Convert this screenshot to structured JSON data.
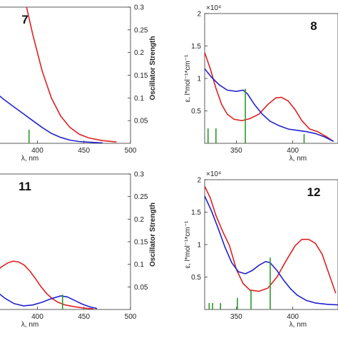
{
  "chart_data": [
    {
      "type": "line",
      "panel_label": "7",
      "xlabel": "λ, nm",
      "y2label": "Oscillator Strength",
      "xlim": [
        356,
        500
      ],
      "x_ticks": [
        "400",
        "450",
        "500"
      ],
      "ylim_right": [
        0,
        0.3
      ],
      "y2_ticks": [
        "0.3",
        "0.25",
        "0.2",
        "0.15",
        "0.1",
        "0.05"
      ],
      "series": [
        {
          "color": "#dd2222",
          "points": [
            [
              356,
              0.55
            ],
            [
              365,
              0.5
            ],
            [
              375,
              0.42
            ],
            [
              385,
              0.33
            ],
            [
              395,
              0.24
            ],
            [
              405,
              0.16
            ],
            [
              415,
              0.1
            ],
            [
              425,
              0.06
            ],
            [
              435,
              0.035
            ],
            [
              445,
              0.02
            ],
            [
              455,
              0.012
            ],
            [
              470,
              0.006
            ],
            [
              485,
              0.003
            ]
          ]
        },
        {
          "color": "#2222cc",
          "points": [
            [
              356,
              0.11
            ],
            [
              365,
              0.095
            ],
            [
              375,
              0.08
            ],
            [
              385,
              0.065
            ],
            [
              395,
              0.05
            ],
            [
              405,
              0.035
            ],
            [
              415,
              0.022
            ],
            [
              425,
              0.013
            ],
            [
              435,
              0.007
            ],
            [
              445,
              0.004
            ],
            [
              460,
              0.002
            ],
            [
              470,
              0.001
            ]
          ]
        }
      ],
      "sticks": [
        {
          "x": 391,
          "f": 0.03
        }
      ]
    },
    {
      "type": "line",
      "panel_label": "8",
      "xlabel": "λ, nm",
      "ylabel": "ε, l*mol⁻¹*cm⁻¹",
      "y_multiplier": "×10⁴",
      "xlim": [
        322,
        440
      ],
      "x_ticks": [
        "350",
        "400"
      ],
      "ylim": [
        0,
        2
      ],
      "y_ticks": [
        "2",
        "1.5",
        "1",
        "0.5"
      ],
      "series": [
        {
          "color": "#dd2222",
          "points": [
            [
              322,
              1.4
            ],
            [
              327,
              1.15
            ],
            [
              332,
              0.85
            ],
            [
              337,
              0.6
            ],
            [
              342,
              0.45
            ],
            [
              348,
              0.37
            ],
            [
              355,
              0.35
            ],
            [
              362,
              0.38
            ],
            [
              370,
              0.45
            ],
            [
              378,
              0.6
            ],
            [
              385,
              0.7
            ],
            [
              390,
              0.71
            ],
            [
              396,
              0.65
            ],
            [
              402,
              0.52
            ],
            [
              408,
              0.35
            ],
            [
              415,
              0.22
            ],
            [
              422,
              0.18
            ],
            [
              430,
              0.1
            ],
            [
              436,
              0.03
            ]
          ]
        },
        {
          "color": "#2222cc",
          "points": [
            [
              322,
              1.15
            ],
            [
              328,
              1.02
            ],
            [
              335,
              0.9
            ],
            [
              342,
              0.82
            ],
            [
              350,
              0.8
            ],
            [
              356,
              0.82
            ],
            [
              360,
              0.76
            ],
            [
              366,
              0.6
            ],
            [
              373,
              0.45
            ],
            [
              380,
              0.34
            ],
            [
              388,
              0.27
            ],
            [
              396,
              0.22
            ],
            [
              404,
              0.2
            ],
            [
              412,
              0.18
            ],
            [
              420,
              0.15
            ],
            [
              428,
              0.1
            ],
            [
              436,
              0.03
            ]
          ]
        }
      ],
      "sticks": [
        {
          "x": 325,
          "h": 0.23
        },
        {
          "x": 332,
          "h": 0.23
        },
        {
          "x": 358,
          "h": 0.84
        },
        {
          "x": 410,
          "h": 0.14
        }
      ]
    },
    {
      "type": "line",
      "panel_label": "11",
      "xlabel": "λ, nm",
      "y2label": "Oscillator Strength",
      "xlim": [
        356,
        500
      ],
      "x_ticks": [
        "400",
        "450",
        "500"
      ],
      "ylim_right": [
        0,
        0.3
      ],
      "y2_ticks": [
        "0.3",
        "0.25",
        "0.2",
        "0.15",
        "0.1",
        "0.05"
      ],
      "series": [
        {
          "color": "#dd2222",
          "points": [
            [
              356,
              0.085
            ],
            [
              362,
              0.095
            ],
            [
              368,
              0.103
            ],
            [
              374,
              0.107
            ],
            [
              380,
              0.105
            ],
            [
              386,
              0.098
            ],
            [
              392,
              0.085
            ],
            [
              398,
              0.068
            ],
            [
              404,
              0.05
            ],
            [
              410,
              0.035
            ],
            [
              416,
              0.024
            ],
            [
              422,
              0.016
            ],
            [
              430,
              0.01
            ],
            [
              440,
              0.006
            ],
            [
              450,
              0.003
            ],
            [
              460,
              0.0015
            ]
          ]
        },
        {
          "color": "#2222cc",
          "points": [
            [
              356,
              0.04
            ],
            [
              365,
              0.025
            ],
            [
              375,
              0.013
            ],
            [
              385,
              0.008
            ],
            [
              395,
              0.01
            ],
            [
              405,
              0.016
            ],
            [
              415,
              0.024
            ],
            [
              425,
              0.03
            ],
            [
              432,
              0.028
            ],
            [
              440,
              0.02
            ],
            [
              448,
              0.012
            ],
            [
              456,
              0.006
            ],
            [
              464,
              0.002
            ]
          ]
        }
      ],
      "sticks": [
        {
          "x": 427,
          "f": 0.033
        }
      ]
    },
    {
      "type": "line",
      "panel_label": "12",
      "xlabel": "λ, nm",
      "ylabel": "ε, l*mol⁻¹*cm⁻¹",
      "y_multiplier": "×10⁴",
      "xlim": [
        322,
        440
      ],
      "x_ticks": [
        "350",
        "400"
      ],
      "ylim": [
        0,
        2
      ],
      "y_ticks": [
        "2",
        "1.5",
        "1",
        "0.5"
      ],
      "series": [
        {
          "color": "#dd2222",
          "points": [
            [
              322,
              1.9
            ],
            [
              327,
              1.72
            ],
            [
              332,
              1.45
            ],
            [
              338,
              1.2
            ],
            [
              344,
              0.98
            ],
            [
              350,
              0.62
            ],
            [
              356,
              0.4
            ],
            [
              362,
              0.3
            ],
            [
              370,
              0.28
            ],
            [
              378,
              0.33
            ],
            [
              386,
              0.5
            ],
            [
              394,
              0.75
            ],
            [
              402,
              0.98
            ],
            [
              408,
              1.08
            ],
            [
              414,
              1.08
            ],
            [
              420,
              1.02
            ],
            [
              426,
              0.85
            ],
            [
              432,
              0.55
            ],
            [
              438,
              0.25
            ]
          ]
        },
        {
          "color": "#2222cc",
          "points": [
            [
              322,
              1.75
            ],
            [
              328,
              1.52
            ],
            [
              334,
              1.25
            ],
            [
              340,
              0.96
            ],
            [
              346,
              0.72
            ],
            [
              352,
              0.58
            ],
            [
              358,
              0.55
            ],
            [
              364,
              0.6
            ],
            [
              370,
              0.68
            ],
            [
              376,
              0.74
            ],
            [
              380,
              0.72
            ],
            [
              386,
              0.6
            ],
            [
              392,
              0.45
            ],
            [
              398,
              0.32
            ],
            [
              404,
              0.22
            ],
            [
              412,
              0.14
            ],
            [
              420,
              0.1
            ],
            [
              430,
              0.08
            ],
            [
              440,
              0.07
            ]
          ]
        }
      ],
      "sticks": [
        {
          "x": 326,
          "h": 0.1
        },
        {
          "x": 329,
          "h": 0.1
        },
        {
          "x": 336,
          "h": 0.1
        },
        {
          "x": 351,
          "h": 0.18
        },
        {
          "x": 363,
          "h": 0.3
        },
        {
          "x": 380,
          "h": 0.8
        }
      ]
    }
  ]
}
